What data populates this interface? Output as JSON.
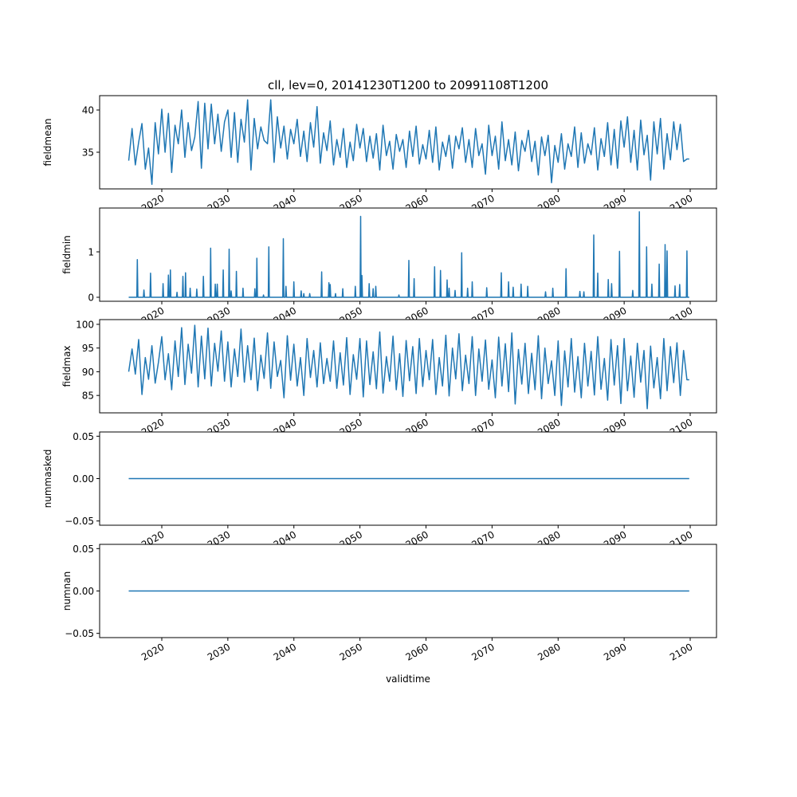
{
  "chart_data": {
    "type": "line",
    "title": "cll, lev=0, 20141230T1200 to 20991108T1200",
    "xlabel": "validtime",
    "xlim": [
      2010.59,
      2103.98
    ],
    "x_ticks": [
      2020,
      2030,
      2040,
      2050,
      2060,
      2070,
      2080,
      2090,
      2100
    ],
    "x_tick_labels": [
      "2020",
      "2030",
      "2040",
      "2050",
      "2060",
      "2070",
      "2080",
      "2090",
      "2100"
    ],
    "x_start": 2015.0,
    "x_end": 2099.85,
    "sample_step_years": 0.5,
    "line_color": "#1f77b4",
    "grid": false,
    "panels": [
      {
        "ylabel": "fieldmean",
        "ylim": [
          30.66,
          41.7
        ],
        "y_ticks": [
          35,
          40
        ],
        "y_tick_labels": [
          "35",
          "40"
        ],
        "values": [
          34.0,
          37.8,
          33.5,
          36.2,
          38.4,
          33.0,
          35.5,
          31.2,
          38.5,
          34.8,
          40.1,
          35.0,
          39.6,
          32.6,
          38.2,
          36.0,
          40.0,
          34.4,
          38.5,
          35.2,
          36.8,
          41.0,
          33.1,
          40.8,
          35.4,
          40.7,
          36.0,
          39.5,
          35.1,
          38.6,
          40.0,
          34.4,
          39.7,
          33.8,
          38.9,
          36.2,
          41.2,
          32.9,
          39.0,
          35.4,
          38.0,
          36.4,
          36.0,
          41.2,
          33.8,
          39.2,
          35.5,
          38.1,
          34.2,
          37.7,
          36.0,
          38.9,
          34.5,
          37.5,
          33.9,
          38.5,
          35.6,
          40.4,
          33.7,
          37.3,
          35.2,
          38.7,
          33.5,
          36.5,
          34.4,
          37.8,
          33.2,
          36.2,
          34.0,
          38.3,
          35.5,
          37.8,
          33.9,
          36.9,
          34.3,
          37.2,
          32.9,
          38.2,
          34.6,
          36.3,
          33.0,
          37.1,
          35.1,
          36.5,
          33.2,
          37.5,
          34.5,
          38.1,
          33.6,
          35.9,
          34.2,
          37.6,
          33.8,
          38.0,
          32.9,
          36.2,
          34.5,
          37.0,
          33.1,
          36.9,
          35.4,
          37.9,
          33.8,
          36.5,
          33.2,
          37.8,
          34.6,
          36.0,
          32.4,
          38.2,
          34.6,
          36.9,
          33.0,
          38.6,
          34.0,
          36.5,
          33.5,
          37.4,
          32.8,
          36.4,
          35.1,
          37.6,
          33.9,
          36.3,
          32.3,
          36.8,
          34.6,
          37.0,
          31.4,
          35.8,
          33.8,
          37.2,
          33.0,
          36.0,
          34.5,
          38.0,
          33.2,
          37.3,
          33.7,
          36.0,
          34.7,
          37.9,
          32.9,
          36.6,
          34.5,
          38.5,
          33.5,
          37.7,
          33.1,
          38.7,
          35.6,
          39.2,
          33.8,
          37.6,
          32.9,
          38.8,
          34.7,
          37.0,
          31.7,
          38.6,
          34.8,
          39.0,
          33.0,
          37.2,
          34.1,
          38.6,
          35.3,
          38.3,
          33.9,
          34.2
        ]
      },
      {
        "ylabel": "fieldmin",
        "ylim": [
          -0.088,
          1.965
        ],
        "y_ticks": [
          0,
          1
        ],
        "y_tick_labels": [
          "0",
          "1"
        ],
        "baseline": 0,
        "spikes": [
          [
            2016.3,
            0.83
          ],
          [
            2017.3,
            0.16
          ],
          [
            2018.3,
            0.53
          ],
          [
            2020.2,
            0.3
          ],
          [
            2021.0,
            0.49
          ],
          [
            2021.3,
            0.6
          ],
          [
            2022.3,
            0.11
          ],
          [
            2023.2,
            0.46
          ],
          [
            2023.6,
            0.54
          ],
          [
            2024.3,
            0.2
          ],
          [
            2025.3,
            0.18
          ],
          [
            2026.3,
            0.46
          ],
          [
            2027.4,
            1.08
          ],
          [
            2028.1,
            0.29
          ],
          [
            2028.4,
            0.29
          ],
          [
            2029.3,
            0.6
          ],
          [
            2030.2,
            1.06
          ],
          [
            2030.5,
            0.14
          ],
          [
            2031.3,
            0.57
          ],
          [
            2032.3,
            0.2
          ],
          [
            2034.1,
            0.19
          ],
          [
            2034.4,
            0.86
          ],
          [
            2035.4,
            0.05
          ],
          [
            2036.2,
            1.11
          ],
          [
            2038.4,
            1.29
          ],
          [
            2038.8,
            0.24
          ],
          [
            2040.0,
            0.34
          ],
          [
            2041.1,
            0.14
          ],
          [
            2041.5,
            0.08
          ],
          [
            2042.4,
            0.08
          ],
          [
            2044.2,
            0.56
          ],
          [
            2045.3,
            0.32
          ],
          [
            2045.5,
            0.28
          ],
          [
            2046.3,
            0.08
          ],
          [
            2047.4,
            0.19
          ],
          [
            2049.3,
            0.24
          ],
          [
            2050.1,
            1.78
          ],
          [
            2050.3,
            0.48
          ],
          [
            2051.4,
            0.3
          ],
          [
            2052.0,
            0.19
          ],
          [
            2052.4,
            0.24
          ],
          [
            2055.9,
            0.05
          ],
          [
            2057.4,
            0.81
          ],
          [
            2058.2,
            0.41
          ],
          [
            2061.3,
            0.67
          ],
          [
            2062.2,
            0.59
          ],
          [
            2063.2,
            0.38
          ],
          [
            2063.5,
            0.2
          ],
          [
            2064.4,
            0.15
          ],
          [
            2065.4,
            0.98
          ],
          [
            2066.3,
            0.2
          ],
          [
            2067.0,
            0.34
          ],
          [
            2069.2,
            0.21
          ],
          [
            2071.4,
            0.54
          ],
          [
            2072.5,
            0.34
          ],
          [
            2073.2,
            0.22
          ],
          [
            2074.4,
            0.29
          ],
          [
            2075.4,
            0.24
          ],
          [
            2078.1,
            0.12
          ],
          [
            2079.2,
            0.2
          ],
          [
            2081.2,
            0.63
          ],
          [
            2083.3,
            0.13
          ],
          [
            2083.9,
            0.12
          ],
          [
            2085.4,
            1.37
          ],
          [
            2086.0,
            0.53
          ],
          [
            2087.6,
            0.39
          ],
          [
            2088.1,
            0.3
          ],
          [
            2089.3,
            1.01
          ],
          [
            2091.3,
            0.15
          ],
          [
            2092.3,
            1.88
          ],
          [
            2093.4,
            1.11
          ],
          [
            2094.2,
            0.29
          ],
          [
            2095.3,
            0.73
          ],
          [
            2096.2,
            1.16
          ],
          [
            2096.5,
            1.02
          ],
          [
            2097.7,
            0.25
          ],
          [
            2098.4,
            0.28
          ],
          [
            2099.5,
            1.02
          ]
        ]
      },
      {
        "ylabel": "fieldmax",
        "ylim": [
          81.33,
          101.0
        ],
        "y_ticks": [
          85,
          90,
          95,
          100
        ],
        "y_tick_labels": [
          "85",
          "90",
          "95",
          "100"
        ],
        "values": [
          90.0,
          94.8,
          89.5,
          96.8,
          85.2,
          93.0,
          88.4,
          95.5,
          87.6,
          92.0,
          97.4,
          88.3,
          93.8,
          86.2,
          96.5,
          89.0,
          99.3,
          87.3,
          95.8,
          89.7,
          99.8,
          86.8,
          97.5,
          88.5,
          99.2,
          87.0,
          96.0,
          90.1,
          98.6,
          88.0,
          96.3,
          86.8,
          94.8,
          89.0,
          99.0,
          87.8,
          95.5,
          88.3,
          97.1,
          86.0,
          93.5,
          88.6,
          98.2,
          86.5,
          96.3,
          89.0,
          92.4,
          84.5,
          97.6,
          88.2,
          95.8,
          87.0,
          93.0,
          85.0,
          97.0,
          88.8,
          94.5,
          86.8,
          96.1,
          87.5,
          92.8,
          88.0,
          96.5,
          86.5,
          94.0,
          87.2,
          97.2,
          85.2,
          93.6,
          88.4,
          97.0,
          84.7,
          96.5,
          87.3,
          94.2,
          86.4,
          98.4,
          85.5,
          93.2,
          88.0,
          97.5,
          86.2,
          93.8,
          84.8,
          96.6,
          88.1,
          95.3,
          85.4,
          97.0,
          86.9,
          94.5,
          88.3,
          96.8,
          85.2,
          93.0,
          87.0,
          97.7,
          84.9,
          95.0,
          88.5,
          98.0,
          86.0,
          93.5,
          87.5,
          97.4,
          85.0,
          94.8,
          88.0,
          96.7,
          86.3,
          92.5,
          84.5,
          97.3,
          87.0,
          95.9,
          85.8,
          98.2,
          83.2,
          94.7,
          87.4,
          96.0,
          85.4,
          93.9,
          86.2,
          97.6,
          84.3,
          95.0,
          87.5,
          92.3,
          85.0,
          96.5,
          82.9,
          94.4,
          86.8,
          97.0,
          85.7,
          93.2,
          84.5,
          96.0,
          87.0,
          94.3,
          85.1,
          97.4,
          86.3,
          92.8,
          84.0,
          96.8,
          87.2,
          95.5,
          83.3,
          97.0,
          86.0,
          93.3,
          84.6,
          96.0,
          87.8,
          94.5,
          82.2,
          95.4,
          86.6,
          93.0,
          84.3,
          97.0,
          86.0,
          95.3,
          87.7,
          96.1,
          85.0,
          94.5,
          88.3
        ]
      },
      {
        "ylabel": "nummasked",
        "ylim": [
          -0.055,
          0.055
        ],
        "y_ticks": [
          -0.05,
          0.0,
          0.05
        ],
        "y_tick_labels": [
          "−0.05",
          "0.00",
          "0.05"
        ],
        "constant": 0
      },
      {
        "ylabel": "numnan",
        "ylim": [
          -0.055,
          0.055
        ],
        "y_ticks": [
          -0.05,
          0.0,
          0.05
        ],
        "y_tick_labels": [
          "−0.05",
          "0.00",
          "0.05"
        ],
        "constant": 0
      }
    ]
  }
}
